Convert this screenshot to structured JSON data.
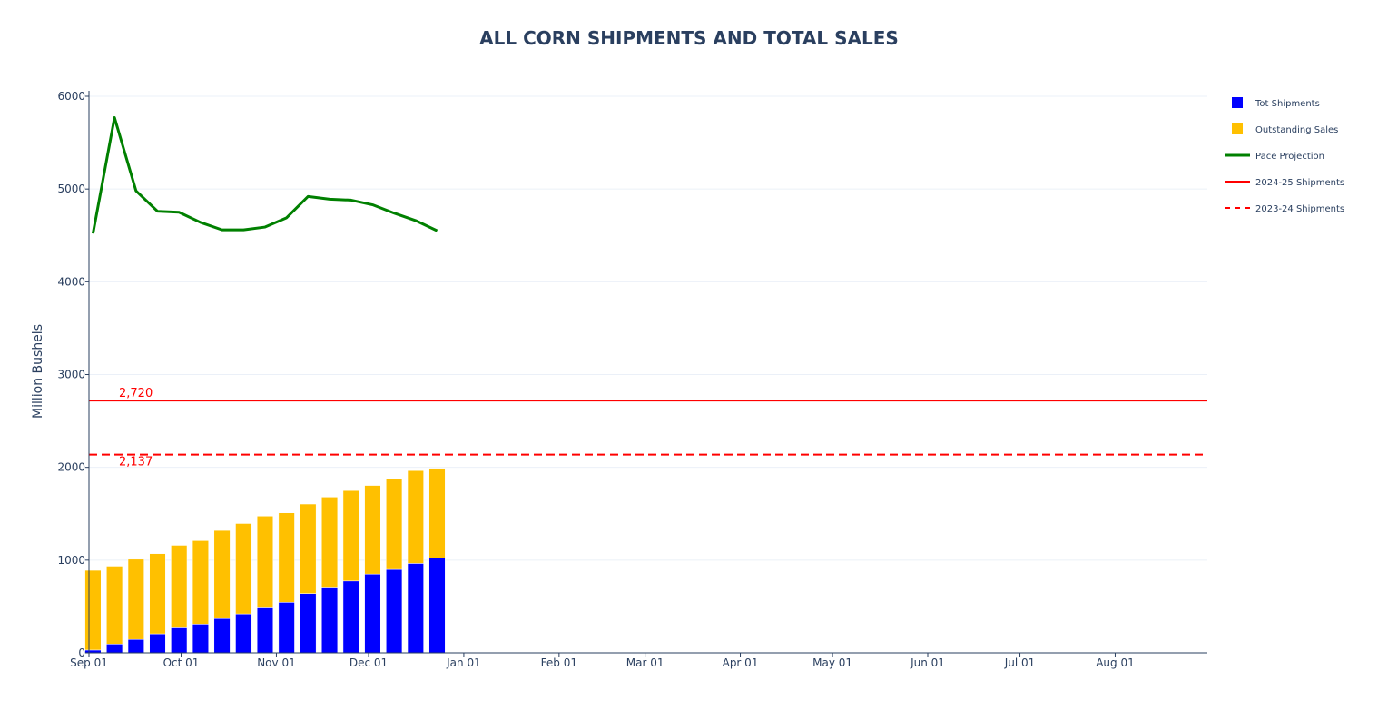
{
  "chart_data": {
    "type": "bar",
    "title": "ALL CORN SHIPMENTS AND TOTAL SALES",
    "xlabel": "",
    "ylabel": "Million Bushels",
    "ylim": [
      0,
      6000
    ],
    "yticks": [
      0,
      1000,
      2000,
      3000,
      4000,
      5000,
      6000
    ],
    "xlim": [
      "2024-09-01",
      "2025-08-31"
    ],
    "x_tick_labels": [
      {
        "date": "2024-09-01",
        "label": "Sep 01"
      },
      {
        "date": "2024-10-01",
        "label": "Oct 01"
      },
      {
        "date": "2024-11-01",
        "label": "Nov 01"
      },
      {
        "date": "2024-12-01",
        "label": "Dec 01"
      },
      {
        "date": "2025-01-01",
        "label": "Jan 01"
      },
      {
        "date": "2025-02-01",
        "label": "Feb 01"
      },
      {
        "date": "2025-03-01",
        "label": "Mar 01"
      },
      {
        "date": "2025-04-01",
        "label": "Apr 01"
      },
      {
        "date": "2025-05-01",
        "label": "May 01"
      },
      {
        "date": "2025-06-01",
        "label": "Jun 01"
      },
      {
        "date": "2025-07-01",
        "label": "Jul 01"
      },
      {
        "date": "2025-08-01",
        "label": "Aug 01"
      }
    ],
    "barmode": "stack",
    "grid": true,
    "legend_position": "right",
    "weeks": [
      "2024-09-05",
      "2024-09-12",
      "2024-09-19",
      "2024-09-26",
      "2024-10-03",
      "2024-10-10",
      "2024-10-17",
      "2024-10-24",
      "2024-10-31",
      "2024-11-07",
      "2024-11-14",
      "2024-11-21",
      "2024-11-28",
      "2024-12-05",
      "2024-12-12",
      "2024-12-19",
      "2024-12-26"
    ],
    "series": [
      {
        "name": "Tot Shipments",
        "kind": "bar",
        "color": "#0000ff",
        "values": [
          30,
          95,
          145,
          205,
          270,
          310,
          370,
          420,
          485,
          545,
          640,
          700,
          775,
          850,
          900,
          965,
          1025
        ]
      },
      {
        "name": "Outstanding Sales",
        "kind": "bar",
        "color": "#ffc000",
        "values": [
          860,
          840,
          865,
          865,
          890,
          900,
          950,
          975,
          990,
          965,
          965,
          980,
          975,
          955,
          975,
          1000,
          965
        ]
      },
      {
        "name": "Pace Projection",
        "kind": "line",
        "color": "#008000",
        "values": [
          4520,
          5770,
          4980,
          4760,
          4750,
          4640,
          4560,
          4560,
          4590,
          4690,
          4920,
          4890,
          4880,
          4830,
          4740,
          4660,
          4550
        ]
      },
      {
        "name": "2024-25 Shipments",
        "kind": "hline",
        "color": "#ff0000",
        "dash": "solid",
        "value": 2720,
        "label": "2,720"
      },
      {
        "name": "2023-24 Shipments",
        "kind": "hline",
        "color": "#ff0000",
        "dash": "dash",
        "value": 2137,
        "label": "2,137"
      }
    ]
  }
}
